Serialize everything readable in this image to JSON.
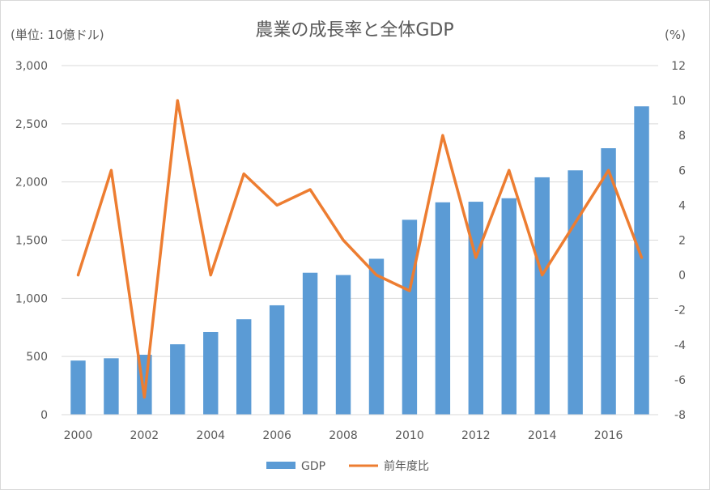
{
  "chart_data": {
    "type": "bar",
    "title": "農業の成長率と全体GDP",
    "y_left_label": "(単位: 10億ドル)",
    "y_right_label": "(%)",
    "categories": [
      "2000",
      "2001",
      "2002",
      "2003",
      "2004",
      "2005",
      "2006",
      "2007",
      "2008",
      "2009",
      "2010",
      "2011",
      "2012",
      "2013",
      "2014",
      "2015",
      "2016",
      "2017"
    ],
    "x_tick_labels": [
      "2000",
      "2002",
      "2004",
      "2006",
      "2008",
      "2010",
      "2012",
      "2014",
      "2016"
    ],
    "y_left_ticks": [
      "0",
      "500",
      "1,000",
      "1,500",
      "2,000",
      "2,500",
      "3,000"
    ],
    "y_right_ticks": [
      "-8",
      "-6",
      "-4",
      "-2",
      "0",
      "2",
      "4",
      "6",
      "8",
      "10",
      "12"
    ],
    "ylim_left": [
      0,
      3000
    ],
    "ylim_right": [
      -8,
      12
    ],
    "grid": true,
    "legend_position": "bottom",
    "series": [
      {
        "name": "GDP",
        "type": "bar",
        "axis": "left",
        "color": "#5b9bd5",
        "values": [
          465,
          485,
          515,
          605,
          710,
          820,
          940,
          1220,
          1200,
          1340,
          1675,
          1825,
          1830,
          1860,
          2040,
          2100,
          2290,
          2650
        ]
      },
      {
        "name": "前年度比",
        "type": "line",
        "axis": "right",
        "color": "#ed7d31",
        "values": [
          0,
          6,
          -7,
          10,
          0,
          5.8,
          4,
          4.9,
          2,
          0,
          -0.9,
          8,
          1,
          6,
          0,
          3,
          6,
          1
        ]
      }
    ]
  }
}
